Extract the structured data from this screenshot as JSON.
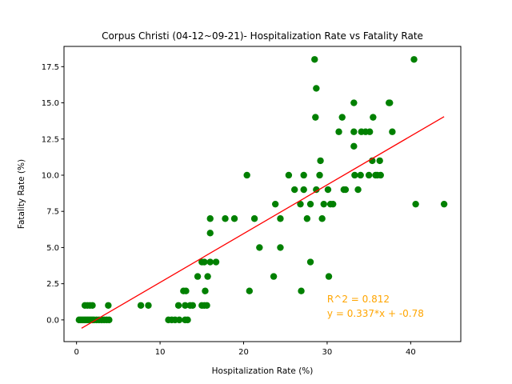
{
  "chart_data": {
    "type": "scatter",
    "title": "Corpus Christi (04-12~09-21)- Hospitalization Rate vs Fatality Rate",
    "xlabel": "Hospitalization Rate (%)",
    "ylabel": "Fatality Rate (%)",
    "xlim": [
      -1.5,
      46
    ],
    "ylim": [
      -1.5,
      18.9
    ],
    "xticks": [
      0,
      10,
      20,
      30,
      40
    ],
    "xtick_labels": [
      "0",
      "10",
      "20",
      "30",
      "40"
    ],
    "yticks": [
      0,
      2.5,
      5,
      7.5,
      10,
      12.5,
      15,
      17.5
    ],
    "ytick_labels": [
      "0.0",
      "2.5",
      "5.0",
      "7.5",
      "10.0",
      "12.5",
      "15.0",
      "17.5"
    ],
    "grid": false,
    "colors": {
      "points": "#008000",
      "fit_line": "#ff0000",
      "annotation": "#ffa500"
    },
    "points": [
      [
        0.3,
        0
      ],
      [
        0.5,
        0
      ],
      [
        0.7,
        0
      ],
      [
        0.9,
        0
      ],
      [
        1.1,
        0
      ],
      [
        1.3,
        0
      ],
      [
        1.5,
        0
      ],
      [
        1.7,
        0
      ],
      [
        1.9,
        0
      ],
      [
        2.1,
        0
      ],
      [
        2.4,
        0
      ],
      [
        2.7,
        0
      ],
      [
        3.0,
        0
      ],
      [
        3.3,
        0
      ],
      [
        3.6,
        0
      ],
      [
        3.9,
        0
      ],
      [
        1.0,
        1
      ],
      [
        1.3,
        1
      ],
      [
        1.6,
        1
      ],
      [
        1.9,
        1
      ],
      [
        3.8,
        1
      ],
      [
        7.7,
        1
      ],
      [
        8.6,
        1
      ],
      [
        11.0,
        0
      ],
      [
        11.4,
        0
      ],
      [
        11.8,
        0
      ],
      [
        12.3,
        0
      ],
      [
        13.0,
        0
      ],
      [
        13.3,
        0
      ],
      [
        12.2,
        1
      ],
      [
        13.0,
        1
      ],
      [
        13.6,
        1
      ],
      [
        13.9,
        1
      ],
      [
        12.8,
        2
      ],
      [
        13.1,
        2
      ],
      [
        14.5,
        3
      ],
      [
        15.0,
        1
      ],
      [
        15.3,
        1
      ],
      [
        15.6,
        1
      ],
      [
        15.4,
        2
      ],
      [
        15.7,
        3
      ],
      [
        15.0,
        4
      ],
      [
        15.3,
        4
      ],
      [
        16.0,
        4
      ],
      [
        16.7,
        4
      ],
      [
        16.0,
        6
      ],
      [
        16.0,
        7
      ],
      [
        17.8,
        7
      ],
      [
        18.9,
        7
      ],
      [
        20.4,
        10
      ],
      [
        20.7,
        2
      ],
      [
        21.3,
        7
      ],
      [
        21.9,
        5
      ],
      [
        23.6,
        3
      ],
      [
        23.8,
        8
      ],
      [
        24.4,
        5
      ],
      [
        24.4,
        7
      ],
      [
        25.4,
        10
      ],
      [
        26.1,
        9
      ],
      [
        26.8,
        8
      ],
      [
        26.9,
        2
      ],
      [
        27.2,
        9
      ],
      [
        27.2,
        10
      ],
      [
        27.6,
        7
      ],
      [
        28.0,
        8
      ],
      [
        28.0,
        4
      ],
      [
        28.5,
        18
      ],
      [
        28.6,
        14
      ],
      [
        28.7,
        16
      ],
      [
        28.7,
        9
      ],
      [
        29.1,
        10
      ],
      [
        29.2,
        11
      ],
      [
        29.4,
        7
      ],
      [
        29.6,
        8
      ],
      [
        30.1,
        9
      ],
      [
        30.2,
        3
      ],
      [
        30.4,
        8
      ],
      [
        30.7,
        8
      ],
      [
        31.4,
        13
      ],
      [
        31.8,
        14
      ],
      [
        32.0,
        9
      ],
      [
        32.2,
        9
      ],
      [
        33.2,
        15
      ],
      [
        33.2,
        13
      ],
      [
        33.2,
        12
      ],
      [
        33.3,
        10
      ],
      [
        33.7,
        9
      ],
      [
        34.0,
        10
      ],
      [
        34.1,
        13
      ],
      [
        34.6,
        13
      ],
      [
        35.0,
        10
      ],
      [
        35.1,
        13
      ],
      [
        35.4,
        11
      ],
      [
        35.5,
        14
      ],
      [
        35.8,
        10
      ],
      [
        36.0,
        10
      ],
      [
        36.3,
        11
      ],
      [
        36.4,
        10
      ],
      [
        37.4,
        15
      ],
      [
        37.5,
        15
      ],
      [
        37.8,
        13
      ],
      [
        40.4,
        18
      ],
      [
        40.6,
        8
      ],
      [
        44.0,
        8
      ]
    ],
    "fit": {
      "slope": 0.337,
      "intercept": -0.78,
      "x_range": [
        0.6,
        44.0
      ]
    },
    "annotation": {
      "line1": "R^2 = 0.812",
      "line2": "y = 0.337*x + -0.78",
      "anchor": [
        30.0,
        0.0
      ]
    }
  }
}
